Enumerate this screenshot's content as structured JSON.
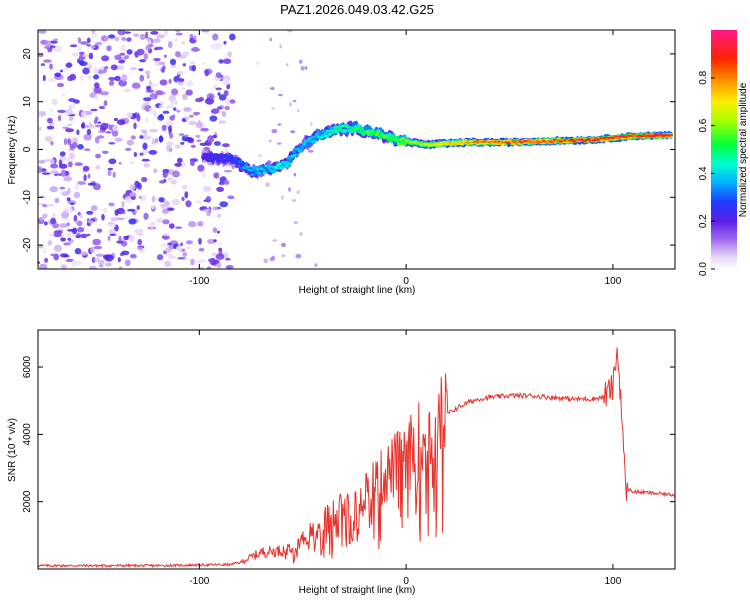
{
  "title": "PAZ1.2026.049.03.42.G25",
  "chart_data": [
    {
      "type": "heatmap",
      "name": "spectrogram",
      "xlabel": "Height of straight line (km)",
      "ylabel": "Frequency (Hz)",
      "xlim": [
        -178,
        130
      ],
      "ylim": [
        -25,
        25
      ],
      "xticks": [
        -100,
        0,
        100
      ],
      "xtick_labels": [
        "-100",
        "0",
        "100"
      ],
      "yticks": [
        -20,
        -10,
        0,
        10,
        20
      ],
      "ytick_labels": [
        "-20",
        "-10",
        "0",
        "10",
        "20"
      ],
      "ridge": {
        "description_points": [
          {
            "x": -98,
            "y": -1.5,
            "amp": 0.25
          },
          {
            "x": -85,
            "y": -2.0,
            "amp": 0.3
          },
          {
            "x": -75,
            "y": -4.5,
            "amp": 0.4
          },
          {
            "x": -65,
            "y": -4.0,
            "amp": 0.45
          },
          {
            "x": -58,
            "y": -3.0,
            "amp": 0.45
          },
          {
            "x": -50,
            "y": 1.0,
            "amp": 0.4
          },
          {
            "x": -42,
            "y": 3.0,
            "amp": 0.45
          },
          {
            "x": -35,
            "y": 4.0,
            "amp": 0.5
          },
          {
            "x": -25,
            "y": 4.5,
            "amp": 0.55
          },
          {
            "x": -15,
            "y": 3.5,
            "amp": 0.6
          },
          {
            "x": -5,
            "y": 2.0,
            "amp": 0.6
          },
          {
            "x": 10,
            "y": 1.0,
            "amp": 0.7
          },
          {
            "x": 30,
            "y": 1.5,
            "amp": 0.85
          },
          {
            "x": 50,
            "y": 1.5,
            "amp": 0.9
          },
          {
            "x": 70,
            "y": 1.8,
            "amp": 0.9
          },
          {
            "x": 90,
            "y": 2.0,
            "amp": 0.95
          },
          {
            "x": 110,
            "y": 2.8,
            "amp": 0.95
          },
          {
            "x": 128,
            "y": 3.0,
            "amp": 1.0
          }
        ]
      },
      "noise_region": {
        "xmin": -178,
        "xmax": -82,
        "amp_range": [
          0.0,
          0.25
        ]
      }
    },
    {
      "type": "colorbar",
      "label": "Normalized spectral amplitude",
      "range": [
        0.0,
        1.0
      ],
      "ticks": [
        0.0,
        0.2,
        0.4,
        0.6,
        0.8
      ],
      "tick_labels": [
        "0.0",
        "0.2",
        "0.4",
        "0.6",
        "0.8"
      ]
    },
    {
      "type": "line",
      "name": "snr",
      "xlabel": "Height of straight line (km)",
      "ylabel": "SNR (10 * v/v)",
      "xlim": [
        -178,
        130
      ],
      "ylim": [
        0,
        7100
      ],
      "xticks": [
        -100,
        0,
        100
      ],
      "xtick_labels": [
        "-100",
        "0",
        "100"
      ],
      "yticks": [
        2000,
        4000,
        6000
      ],
      "ytick_labels": [
        "2000",
        "4000",
        "6000"
      ],
      "color": "#e8322b",
      "series": [
        {
          "name": "SNR",
          "x": [
            -178,
            -150,
            -120,
            -100,
            -85,
            -80,
            -75,
            -70,
            -60,
            -55,
            -50,
            -45,
            -40,
            -35,
            -30,
            -25,
            -20,
            -15,
            -10,
            -5,
            0,
            5,
            10,
            15,
            20,
            25,
            30,
            35,
            40,
            50,
            60,
            70,
            80,
            90,
            95,
            100,
            102,
            104,
            106,
            110,
            120,
            130
          ],
          "y": [
            100,
            100,
            100,
            120,
            130,
            200,
            350,
            500,
            550,
            700,
            900,
            1100,
            1400,
            1600,
            1800,
            2000,
            2300,
            2500,
            2800,
            3100,
            3300,
            3700,
            4000,
            4300,
            4600,
            4800,
            4950,
            5050,
            5100,
            5150,
            5150,
            5100,
            5050,
            5050,
            5100,
            5400,
            6500,
            5000,
            2400,
            2300,
            2250,
            2200
          ]
        }
      ]
    }
  ]
}
